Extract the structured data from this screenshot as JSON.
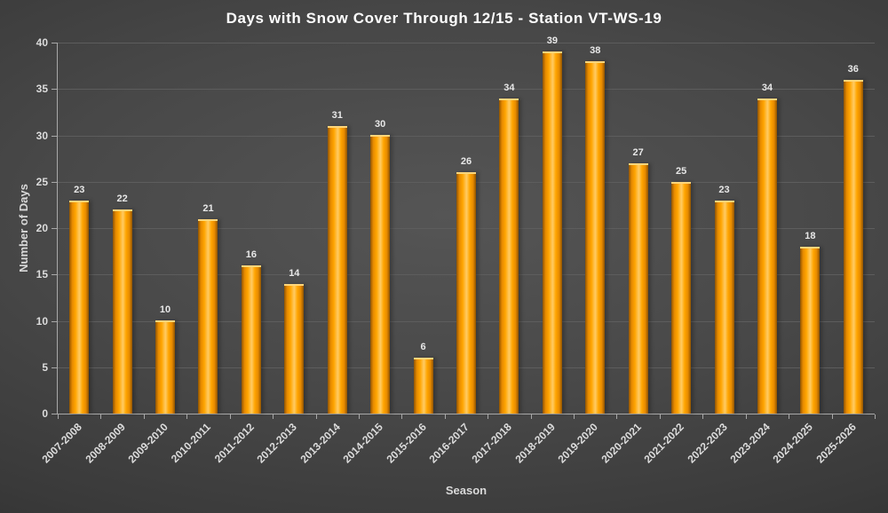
{
  "chart_data": {
    "type": "bar",
    "title": "Days with Snow Cover Through 12/15 - Station VT-WS-19",
    "xlabel": "Season",
    "ylabel": "Number of Days",
    "categories": [
      "2007-2008",
      "2008-2009",
      "2009-2010",
      "2010-2011",
      "2011-2012",
      "2012-2013",
      "2013-2014",
      "2014-2015",
      "2015-2016",
      "2016-2017",
      "2017-2018",
      "2018-2019",
      "2019-2020",
      "2020-2021",
      "2021-2022",
      "2022-2023",
      "2023-2024",
      "2024-2025",
      "2025-2026"
    ],
    "values": [
      23,
      22,
      10,
      21,
      16,
      14,
      31,
      30,
      6,
      26,
      34,
      39,
      38,
      27,
      25,
      23,
      34,
      18,
      36
    ],
    "ylim": [
      0,
      40
    ],
    "yticks": [
      0,
      5,
      10,
      15,
      20,
      25,
      30,
      35,
      40
    ],
    "grid": true,
    "legend": "none",
    "bar_color": "#FFA500",
    "bar_highlight_color": "#FFC453",
    "bar_edge_color": "#8F5400",
    "title_color": "#FFFFFF",
    "label_color": "#DCDCDC",
    "gridline_color": "#5D5D5D",
    "axis_color": "#A8A8A8",
    "background_center_color": "#555555",
    "background_edge_color": "#262626"
  }
}
